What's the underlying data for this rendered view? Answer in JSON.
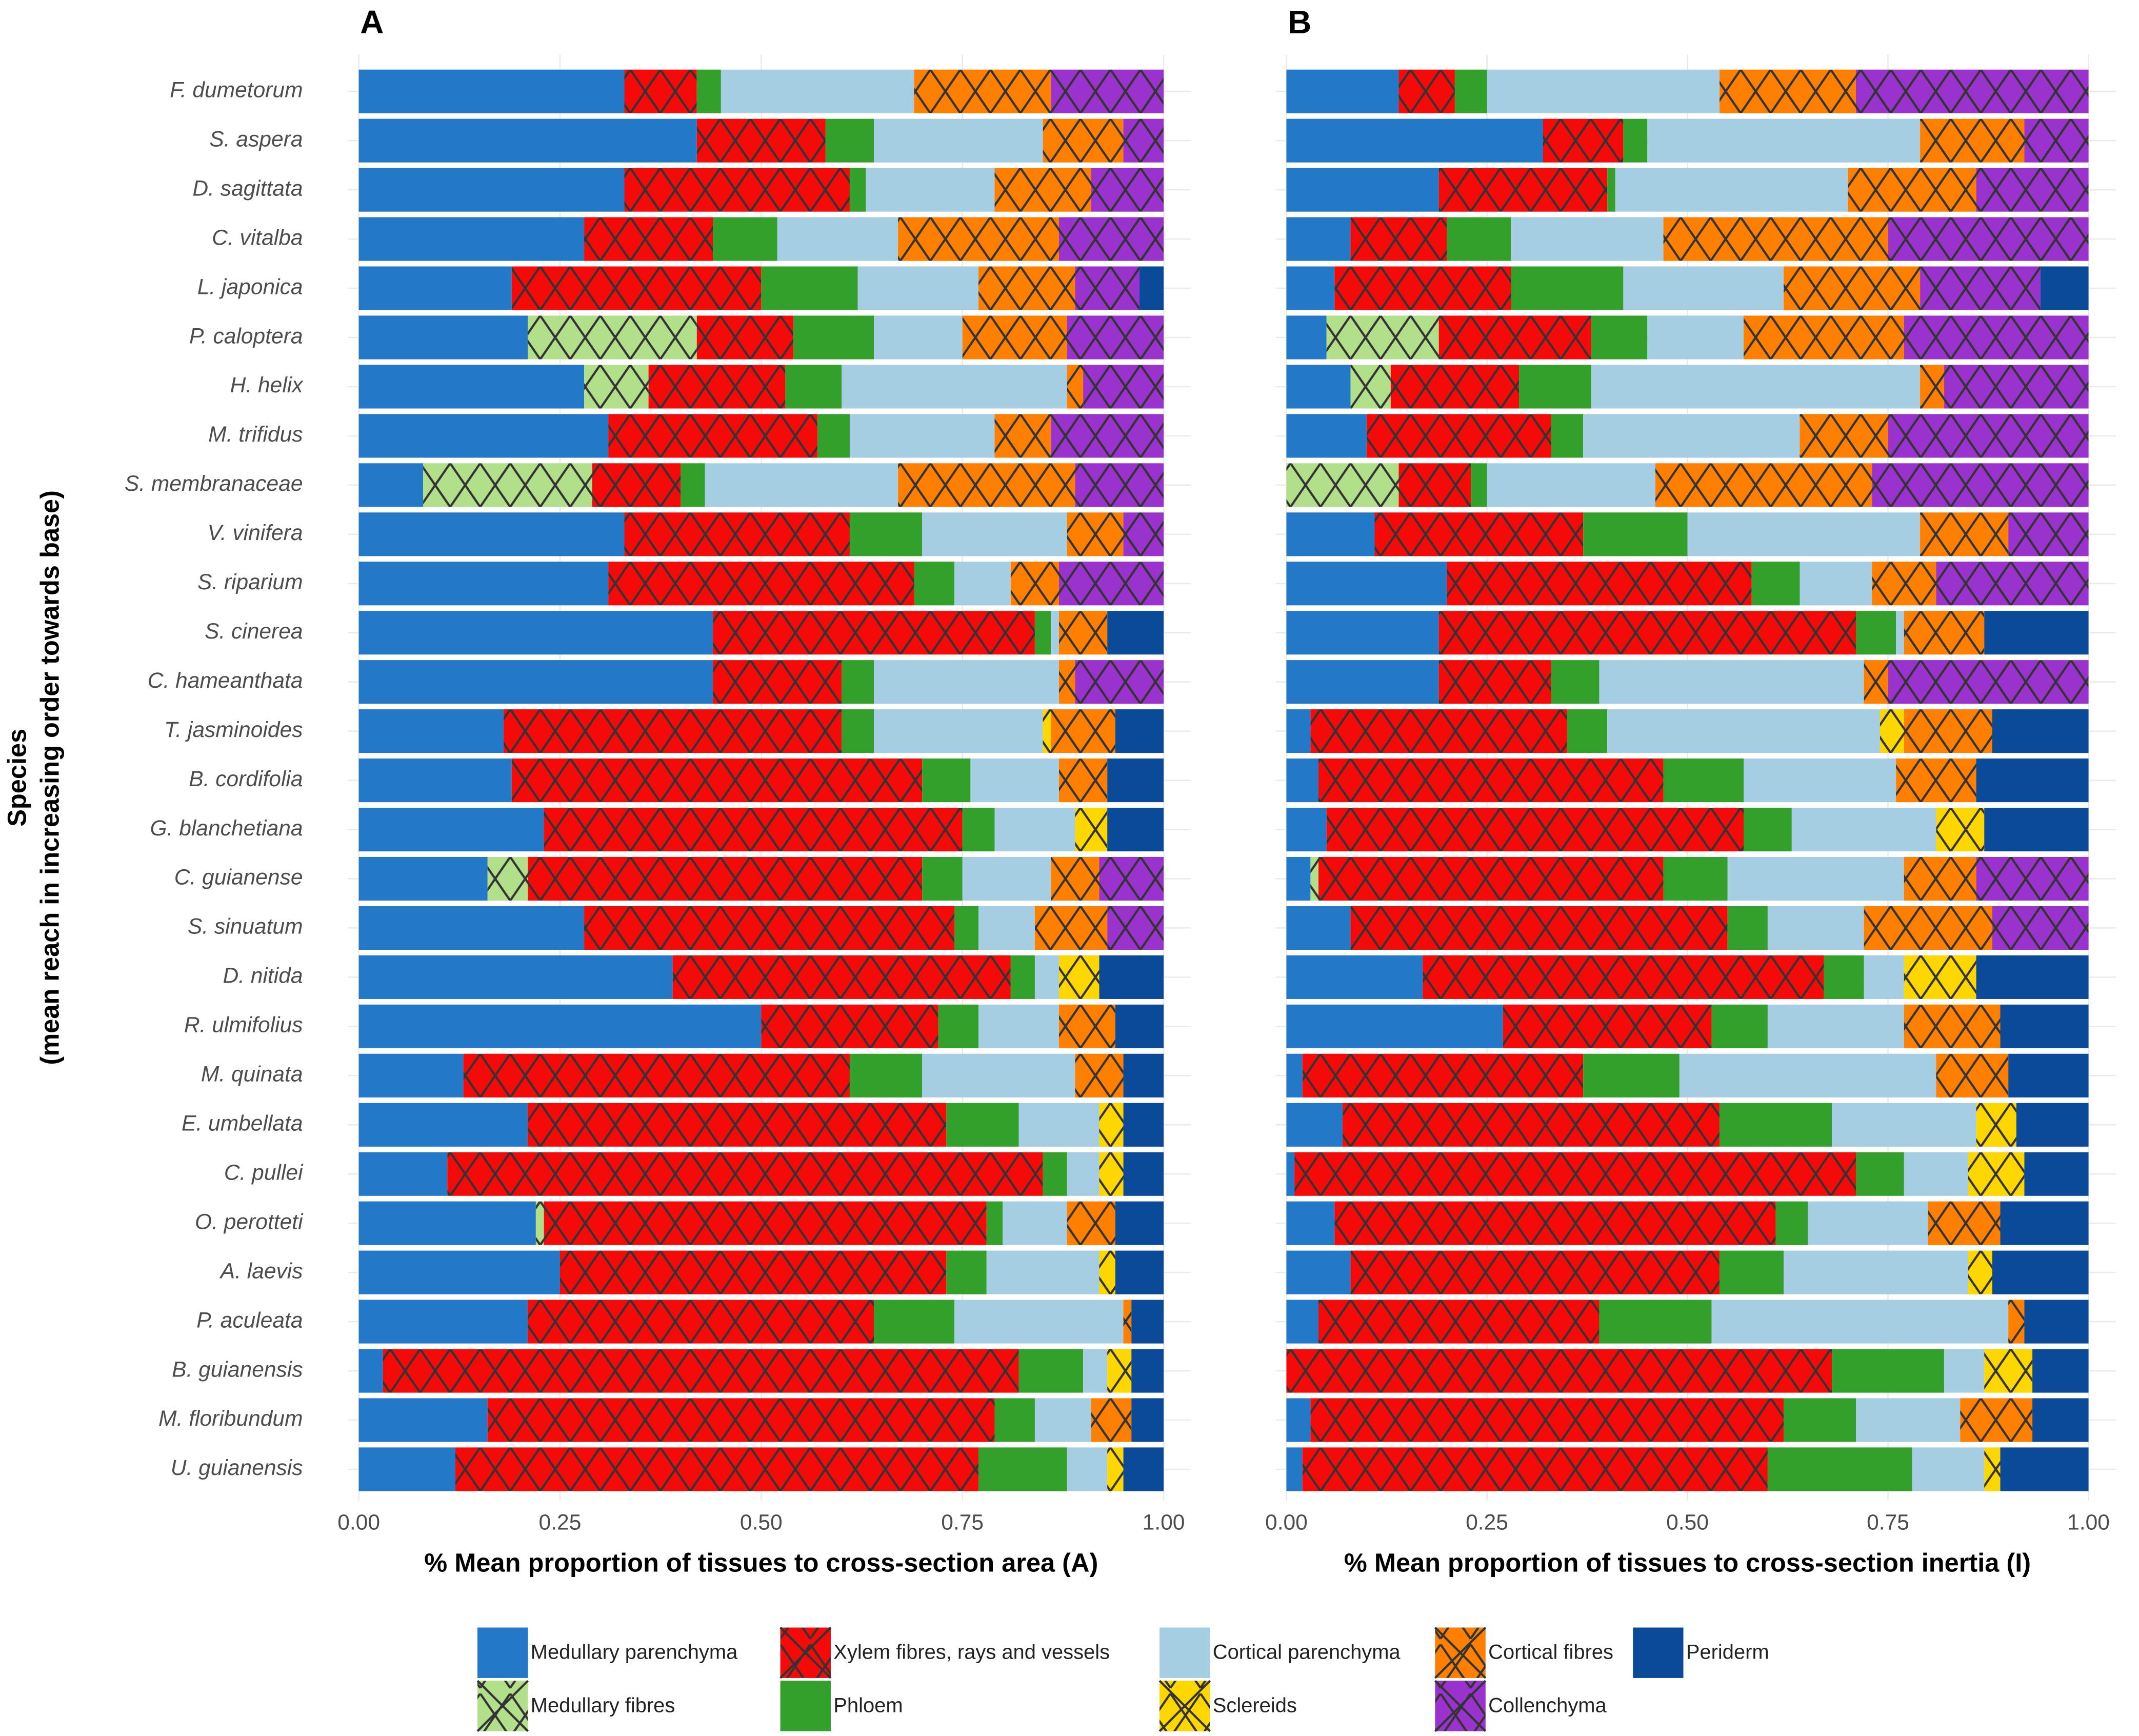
{
  "chart_data": [
    {
      "type": "bar",
      "title": "A",
      "xlabel": "% Mean proportion of tissues to cross-section area (A)",
      "ylabel": [
        "Species",
        "(mean reach in increasing order towards base)"
      ],
      "categories": [
        "F. dumetorum",
        "S. aspera",
        "D. sagittata",
        "C. vitalba",
        "L. japonica",
        "P. caloptera",
        "H. helix",
        "M. trifidus",
        "S. membranaceae",
        "V. vinifera",
        "S. riparium",
        "S. cinerea",
        "C. hameanthata",
        "T. jasminoides",
        "B. cordifolia",
        "G. blanchetiana",
        "C. guianense",
        "S. sinuatum",
        "D. nitida",
        "R. ulmifolius",
        "M. quinata",
        "E. umbellata",
        "C. pullei",
        "O. perotteti",
        "A. laevis",
        "P. aculeata",
        "B. guianensis",
        "M. floribundum",
        "U. guianensis"
      ],
      "xlim": [
        0,
        1
      ],
      "xticks": [
        {
          "value": 0,
          "label": "0.00"
        },
        {
          "value": 0.25,
          "label": "0.25"
        },
        {
          "value": 0.5,
          "label": "0.50"
        },
        {
          "value": 0.75,
          "label": "0.75"
        },
        {
          "value": 1,
          "label": "1.00"
        }
      ],
      "grid": true,
      "series": [
        {
          "name": "Medullary parenchyma",
          "color": "#2378c8",
          "hatch": false,
          "values": [
            0.33,
            0.42,
            0.33,
            0.28,
            0.19,
            0.21,
            0.28,
            0.31,
            0.08,
            0.33,
            0.31,
            0.44,
            0.44,
            0.18,
            0.19,
            0.23,
            0.16,
            0.28,
            0.39,
            0.5,
            0.13,
            0.21,
            0.11,
            0.22,
            0.25,
            0.21,
            0.03,
            0.16,
            0.12
          ]
        },
        {
          "name": "Medullary fibres",
          "color": "#b2df8a",
          "hatch": true,
          "values": [
            0,
            0,
            0,
            0,
            0,
            0.21,
            0.08,
            0,
            0.21,
            0,
            0,
            0,
            0,
            0,
            0,
            0,
            0.05,
            0,
            0,
            0,
            0,
            0,
            0,
            0.01,
            0,
            0,
            0,
            0,
            0
          ]
        },
        {
          "name": "Xylem fibres, rays and vessels",
          "color": "#f50a0a",
          "hatch": true,
          "values": [
            0.09,
            0.16,
            0.28,
            0.16,
            0.31,
            0.12,
            0.17,
            0.26,
            0.11,
            0.28,
            0.38,
            0.4,
            0.16,
            0.42,
            0.51,
            0.52,
            0.49,
            0.46,
            0.42,
            0.22,
            0.48,
            0.52,
            0.74,
            0.55,
            0.48,
            0.43,
            0.79,
            0.63,
            0.65
          ]
        },
        {
          "name": "Phloem",
          "color": "#33a02c",
          "hatch": false,
          "values": [
            0.03,
            0.06,
            0.02,
            0.08,
            0.12,
            0.1,
            0.07,
            0.04,
            0.03,
            0.09,
            0.05,
            0.02,
            0.04,
            0.04,
            0.06,
            0.04,
            0.05,
            0.03,
            0.03,
            0.05,
            0.09,
            0.09,
            0.03,
            0.02,
            0.05,
            0.1,
            0.08,
            0.05,
            0.11
          ]
        },
        {
          "name": "Cortical parenchyma",
          "color": "#a6cee3",
          "hatch": false,
          "values": [
            0.24,
            0.21,
            0.16,
            0.15,
            0.15,
            0.11,
            0.28,
            0.18,
            0.24,
            0.18,
            0.07,
            0.01,
            0.23,
            0.21,
            0.11,
            0.1,
            0.11,
            0.07,
            0.03,
            0.1,
            0.19,
            0.1,
            0.04,
            0.08,
            0.14,
            0.21,
            0.03,
            0.07,
            0.05
          ]
        },
        {
          "name": "Sclereids",
          "color": "#ffd700",
          "hatch": true,
          "values": [
            0,
            0,
            0,
            0,
            0,
            0,
            0,
            0,
            0,
            0,
            0,
            0,
            0,
            0.01,
            0,
            0.04,
            0,
            0,
            0.05,
            0,
            0,
            0.03,
            0.03,
            0,
            0.02,
            0,
            0.03,
            0,
            0.02
          ]
        },
        {
          "name": "Cortical fibres",
          "color": "#ff7f00",
          "hatch": true,
          "values": [
            0.17,
            0.1,
            0.12,
            0.2,
            0.12,
            0.13,
            0.02,
            0.07,
            0.22,
            0.07,
            0.06,
            0.06,
            0.02,
            0.08,
            0.06,
            0,
            0.06,
            0.09,
            0,
            0.07,
            0.06,
            0,
            0,
            0.06,
            0,
            0.01,
            0,
            0.05,
            0
          ]
        },
        {
          "name": "Collenchyma",
          "color": "#9a32cd",
          "hatch": true,
          "values": [
            0.14,
            0.05,
            0.09,
            0.13,
            0.08,
            0.12,
            0.1,
            0.14,
            0.11,
            0.05,
            0.13,
            0,
            0.11,
            0,
            0,
            0,
            0.08,
            0.07,
            0,
            0,
            0,
            0,
            0,
            0,
            0,
            0,
            0,
            0,
            0
          ]
        },
        {
          "name": "Periderm",
          "color": "#0b4a98",
          "hatch": false,
          "values": [
            0,
            0,
            0,
            0,
            0.03,
            0,
            0,
            0,
            0,
            0,
            0,
            0.07,
            0,
            0.06,
            0.07,
            0.07,
            0,
            0,
            0.08,
            0.06,
            0.05,
            0.05,
            0.05,
            0.06,
            0.06,
            0.04,
            0.04,
            0.04,
            0.05
          ]
        }
      ]
    },
    {
      "type": "bar",
      "title": "B",
      "xlabel": "% Mean proportion of tissues to cross-section inertia (I)",
      "xlim": [
        0,
        1
      ],
      "xticks": [
        {
          "value": 0,
          "label": "0.00"
        },
        {
          "value": 0.25,
          "label": "0.25"
        },
        {
          "value": 0.5,
          "label": "0.50"
        },
        {
          "value": 0.75,
          "label": "0.75"
        },
        {
          "value": 1,
          "label": "1.00"
        }
      ],
      "grid": true,
      "series": [
        {
          "values": [
            0.14,
            0.32,
            0.19,
            0.08,
            0.06,
            0.05,
            0.08,
            0.1,
            0,
            0.11,
            0.2,
            0.19,
            0.19,
            0.03,
            0.04,
            0.05,
            0.03,
            0.08,
            0.17,
            0.27,
            0.02,
            0.07,
            0.01,
            0.06,
            0.08,
            0.04,
            0,
            0.03,
            0.02
          ]
        },
        {
          "values": [
            0,
            0,
            0,
            0,
            0,
            0.14,
            0.05,
            0,
            0.14,
            0,
            0,
            0,
            0,
            0,
            0,
            0,
            0.01,
            0,
            0,
            0,
            0,
            0,
            0,
            0,
            0,
            0,
            0,
            0,
            0
          ]
        },
        {
          "values": [
            0.07,
            0.1,
            0.21,
            0.12,
            0.22,
            0.19,
            0.16,
            0.23,
            0.09,
            0.26,
            0.38,
            0.52,
            0.14,
            0.32,
            0.43,
            0.52,
            0.43,
            0.47,
            0.5,
            0.26,
            0.35,
            0.47,
            0.7,
            0.55,
            0.46,
            0.35,
            0.68,
            0.59,
            0.58
          ]
        },
        {
          "values": [
            0.04,
            0.03,
            0.01,
            0.08,
            0.14,
            0.07,
            0.09,
            0.04,
            0.02,
            0.13,
            0.06,
            0.05,
            0.06,
            0.05,
            0.1,
            0.06,
            0.08,
            0.05,
            0.05,
            0.07,
            0.12,
            0.14,
            0.06,
            0.04,
            0.08,
            0.14,
            0.14,
            0.09,
            0.18
          ]
        },
        {
          "values": [
            0.29,
            0.34,
            0.29,
            0.19,
            0.2,
            0.12,
            0.41,
            0.27,
            0.21,
            0.29,
            0.09,
            0.01,
            0.33,
            0.34,
            0.19,
            0.18,
            0.22,
            0.12,
            0.05,
            0.17,
            0.32,
            0.18,
            0.08,
            0.15,
            0.23,
            0.37,
            0.05,
            0.13,
            0.09
          ]
        },
        {
          "values": [
            0,
            0,
            0,
            0,
            0,
            0,
            0,
            0,
            0,
            0,
            0,
            0,
            0,
            0.03,
            0,
            0.06,
            0,
            0,
            0.09,
            0,
            0,
            0.05,
            0.07,
            0,
            0.03,
            0,
            0.06,
            0,
            0.02
          ]
        },
        {
          "values": [
            0.17,
            0.13,
            0.16,
            0.28,
            0.17,
            0.2,
            0.03,
            0.11,
            0.27,
            0.11,
            0.08,
            0.1,
            0.03,
            0.11,
            0.1,
            0,
            0.09,
            0.16,
            0,
            0.12,
            0.09,
            0,
            0,
            0.09,
            0,
            0.02,
            0,
            0.09,
            0
          ]
        },
        {
          "values": [
            0.29,
            0.08,
            0.14,
            0.25,
            0.15,
            0.23,
            0.18,
            0.25,
            0.27,
            0.1,
            0.19,
            0,
            0.25,
            0,
            0,
            0,
            0.14,
            0.12,
            0,
            0,
            0,
            0,
            0,
            0,
            0,
            0,
            0,
            0,
            0
          ]
        },
        {
          "values": [
            0,
            0,
            0,
            0,
            0.06,
            0,
            0,
            0,
            0,
            0,
            0,
            0.13,
            0,
            0.12,
            0.14,
            0.13,
            0,
            0,
            0.14,
            0.11,
            0.1,
            0.09,
            0.08,
            0.11,
            0.12,
            0.08,
            0.07,
            0.07,
            0.11
          ]
        }
      ]
    }
  ]
}
